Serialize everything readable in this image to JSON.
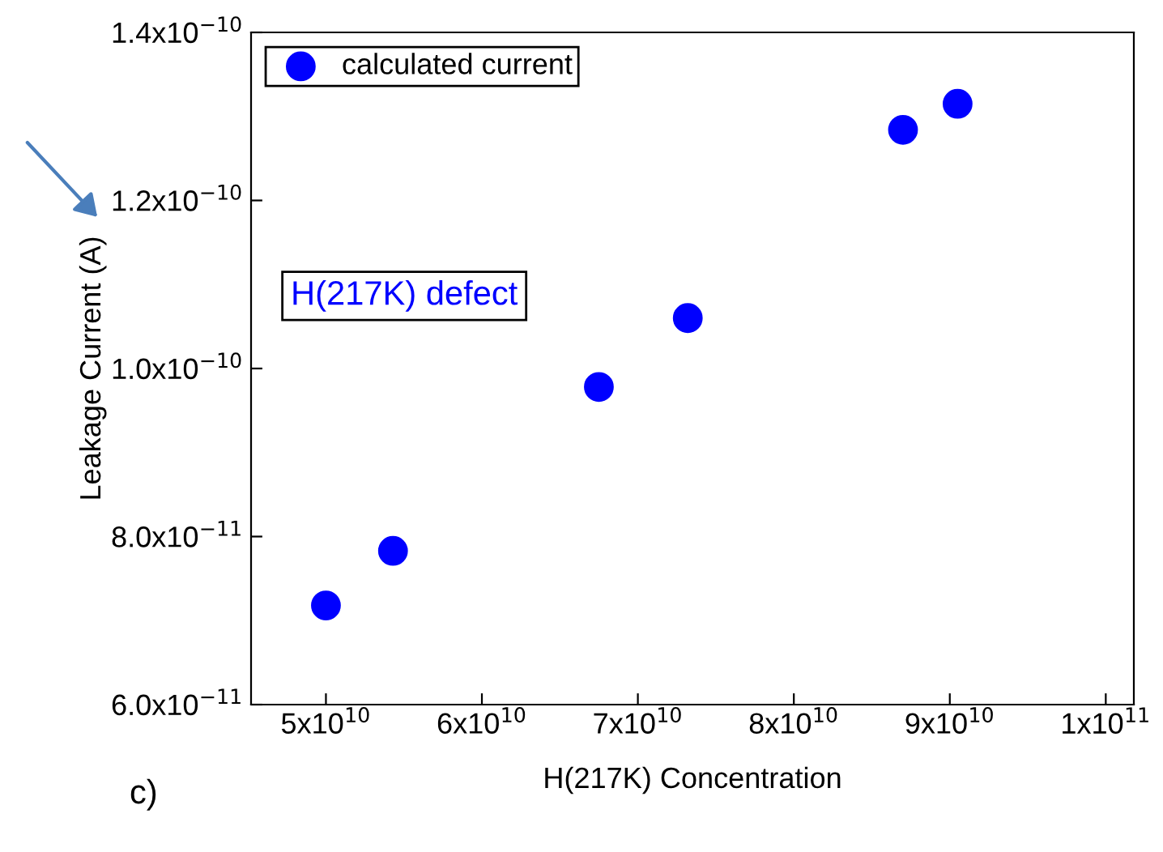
{
  "chart_data": {
    "type": "scatter",
    "xlabel": "H(217K) Concentration",
    "ylabel": "Leakage Current (A)",
    "x": [
      50000000000.0,
      54300000000.0,
      67500000000.0,
      73200000000.0,
      87000000000.0,
      90500000000.0
    ],
    "series": [
      {
        "name": "calculated current",
        "color": "#0000ff",
        "values": [
          7.18e-11,
          7.83e-11,
          9.78e-11,
          1.06e-10,
          1.284e-10,
          1.315e-10
        ]
      }
    ],
    "xlim": [
      45200000000.0,
      101800000000.0
    ],
    "xticks": [
      {
        "value": 50000000000.0,
        "label": "5x10$^{10}$"
      },
      {
        "value": 60000000000.0,
        "label": "6x10$^{10}$"
      },
      {
        "value": 70000000000.0,
        "label": "7x10$^{10}$"
      },
      {
        "value": 80000000000.0,
        "label": "8x10$^{10}$"
      },
      {
        "value": 90000000000.0,
        "label": "9x10$^{10}$"
      },
      {
        "value": 100000000000.0,
        "label": "1x10$^{11}$"
      }
    ],
    "ylim": [
      6e-11,
      1.4e-10
    ],
    "yticks": [
      {
        "value": 6e-11,
        "label": "6.0x10$^{−11}$"
      },
      {
        "value": 8e-11,
        "label": "8.0x10$^{−11}$"
      },
      {
        "value": 1e-10,
        "label": "1.0x10$^{−10}$"
      },
      {
        "value": 1.2e-10,
        "label": "1.2x10$^{−10}$"
      },
      {
        "value": 1.4e-10,
        "label": "1.4x10$^{−10}$"
      }
    ],
    "annotations": [
      "H(217K) defect",
      "c)"
    ],
    "legend": "top left",
    "marker": "circle",
    "grid": false
  }
}
